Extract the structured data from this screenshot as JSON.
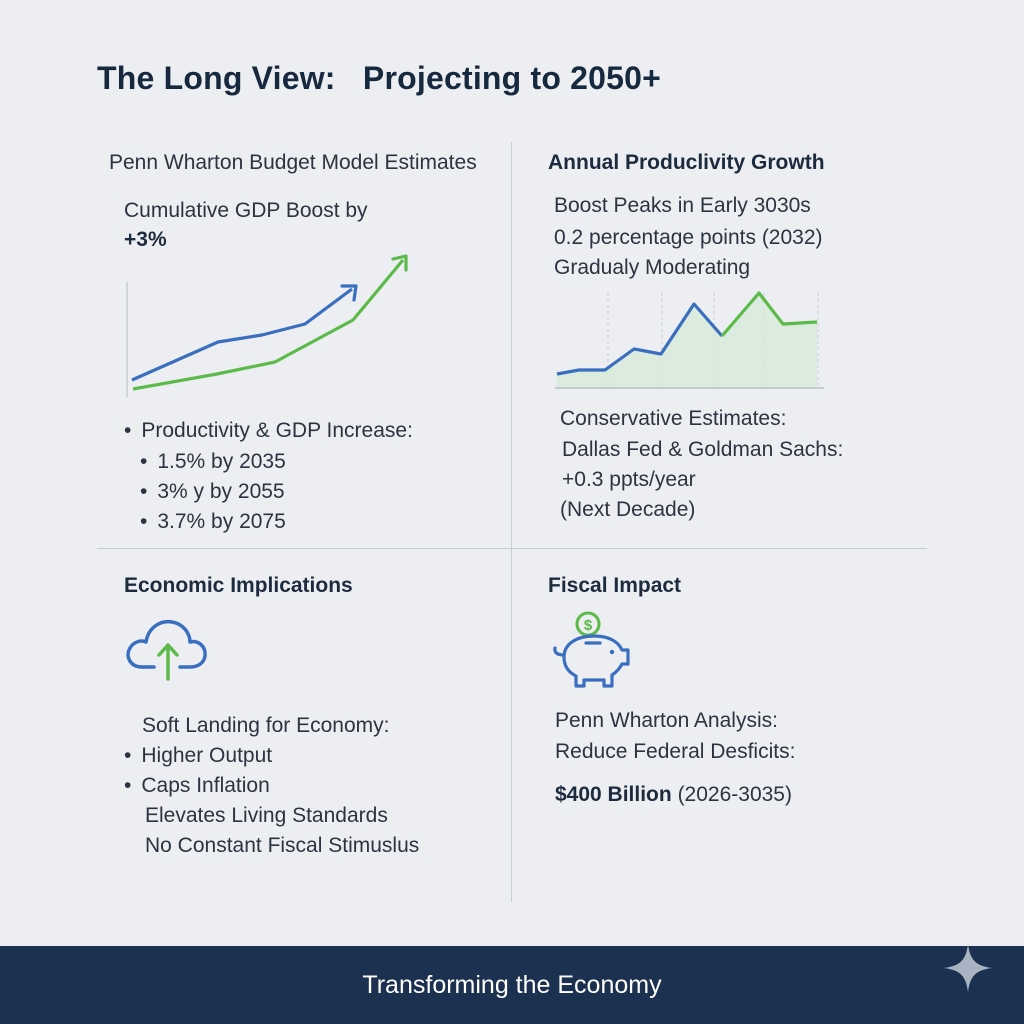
{
  "title": "The Long View:   Projecting to 2050+",
  "q1": {
    "heading": "Penn Wharton Budget Model Estimates",
    "subheading": "Cumulative GDP Boost by",
    "value": "+3%",
    "list_title": "Productivity & GDP Increase:",
    "items": [
      "1.5% by 2035",
      "3% y by 2055",
      "3.7% by 2075"
    ]
  },
  "q2": {
    "heading": "Annual Produclivity Growth",
    "lines": [
      "Boost Peaks in Early 3030s",
      "0.2 percentage points (2032)",
      "Gradualy Moderating"
    ],
    "cons_title": "Conservative Estimates:",
    "cons_lines": [
      "Dallas Fed & Goldman Sachs:",
      "+0.3 ppts/year",
      "(Next Decade)"
    ]
  },
  "q3": {
    "heading": "Economic Implications",
    "lead": "Soft Landing for Economy:",
    "bullets": [
      "Higher Output",
      "Caps Inflation"
    ],
    "extra": [
      "Elevates Living Standards",
      "No Constant Fiscal Stimuslus"
    ],
    "icon": "cloud-upload-icon"
  },
  "q4": {
    "heading": "Fiscal Impact",
    "lines": [
      "Penn Wharton Analysis:",
      "Reduce Federal Desficits:"
    ],
    "amount": "$400 Billion",
    "range": "(2026-3035)",
    "icon": "piggy-bank-icon"
  },
  "footer": {
    "text": "Transforming the Economy"
  },
  "colors": {
    "blue": "#3a6fc0",
    "green": "#5cba4a",
    "navy": "#1c3150",
    "background": "#eceef1"
  }
}
